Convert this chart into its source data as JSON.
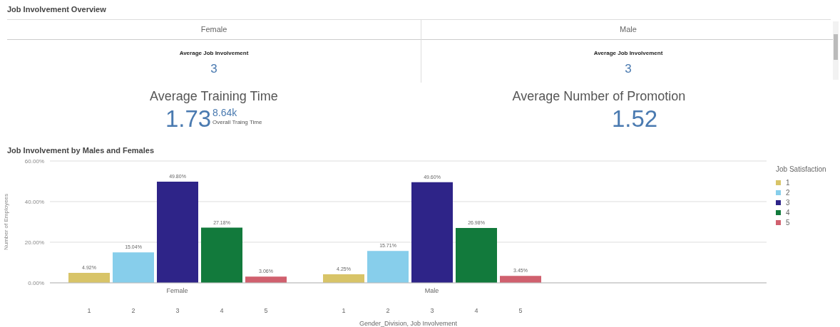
{
  "chart_data": [
    {
      "type": "other",
      "title": "Job Involvement Overview",
      "categories": [
        "Female",
        "Male"
      ],
      "subtitle": "Average Job Involvement",
      "annotations": [
        "3",
        "3",
        "Average Training Time",
        "1.73",
        "8.64k",
        "Overall Traing Time",
        "Average Number of Promotion",
        "1.52"
      ]
    },
    {
      "type": "bar",
      "title": "Job Involvement by Males and Females",
      "xlabel": "Gender_Division, Job Involvement",
      "ylabel": "Number of Employees",
      "legend_title": "Job Satisfaction",
      "legend": "top right",
      "grid": "y",
      "categories": [
        "Female",
        "Male"
      ],
      "ylim": [
        0,
        60
      ],
      "yticks": [
        {
          "value": 0,
          "label": "0.00%"
        },
        {
          "value": 20,
          "label": "20.00%"
        },
        {
          "value": 40,
          "label": "40.00%"
        },
        {
          "value": 60,
          "label": "60.00%"
        }
      ],
      "series": [
        {
          "name": "1",
          "color": "#d8c468",
          "values": [
            4.92,
            4.25
          ],
          "value_labels": [
            "4.92%",
            "4.25%"
          ]
        },
        {
          "name": "2",
          "color": "#87ceeb",
          "values": [
            15.04,
            15.71
          ],
          "value_labels": [
            "15.04%",
            "15.71%"
          ]
        },
        {
          "name": "3",
          "color": "#2e2488",
          "values": [
            49.8,
            49.6
          ],
          "value_labels": [
            "49.80%",
            "49.60%"
          ]
        },
        {
          "name": "4",
          "color": "#127a3c",
          "values": [
            27.18,
            26.98
          ],
          "value_labels": [
            "27.18%",
            "26.98%"
          ]
        },
        {
          "name": "5",
          "color": "#d0606e",
          "values": [
            3.06,
            3.45
          ],
          "value_labels": [
            "3.06%",
            "3.45%"
          ]
        }
      ],
      "annotations": [
        "1",
        "2",
        "3",
        "4",
        "5",
        "1",
        "2",
        "3",
        "4",
        "5"
      ]
    }
  ]
}
